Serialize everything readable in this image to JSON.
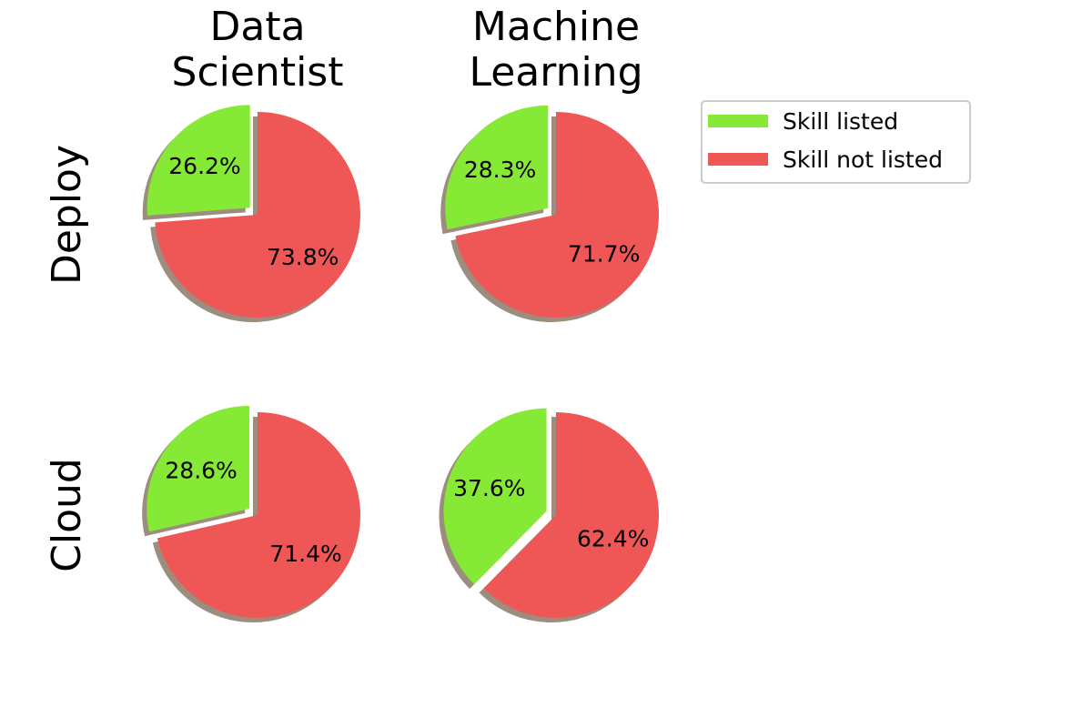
{
  "chart_data": {
    "type": "pie",
    "column_titles": [
      [
        "Data",
        "Scientist"
      ],
      [
        "Machine",
        "Learning"
      ]
    ],
    "row_titles": [
      "Deploy",
      "Cloud"
    ],
    "legend": {
      "placement": "upper-right",
      "entries": [
        {
          "label": "Skill listed",
          "color": "#86e935"
        },
        {
          "label": "Skill not listed",
          "color": "#ef5757"
        }
      ]
    },
    "shadow_color": "#9c8d7f",
    "charts": [
      {
        "row": "Deploy",
        "column": "Data Scientist",
        "values": [
          26.2,
          73.8
        ],
        "labels": [
          "26.2%",
          "73.8%"
        ]
      },
      {
        "row": "Deploy",
        "column": "Machine Learning",
        "values": [
          28.3,
          71.7
        ],
        "labels": [
          "28.3%",
          "71.7%"
        ]
      },
      {
        "row": "Cloud",
        "column": "Data Scientist",
        "values": [
          28.6,
          71.4
        ],
        "labels": [
          "28.6%",
          "71.4%"
        ]
      },
      {
        "row": "Cloud",
        "column": "Machine Learning",
        "values": [
          37.6,
          62.4
        ],
        "labels": [
          "37.6%",
          "62.4%"
        ]
      }
    ]
  }
}
